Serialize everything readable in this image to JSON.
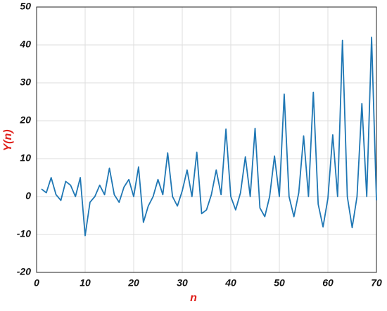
{
  "chart_data": {
    "type": "line",
    "xlabel": "n",
    "ylabel": "Y(n)",
    "x": [
      1,
      2,
      3,
      4,
      5,
      6,
      7,
      8,
      9,
      10,
      11,
      12,
      13,
      14,
      15,
      16,
      17,
      18,
      19,
      20,
      21,
      22,
      23,
      24,
      25,
      26,
      27,
      28,
      29,
      30,
      31,
      32,
      33,
      34,
      35,
      36,
      37,
      38,
      39,
      40,
      41,
      42,
      43,
      44,
      45,
      46,
      47,
      48,
      49,
      50,
      51,
      52,
      53,
      54,
      55,
      56,
      57,
      58,
      59,
      60,
      61,
      62,
      63,
      64,
      65,
      66,
      67,
      68,
      69,
      70
    ],
    "series": [
      {
        "color": "#1f77b4",
        "values": [
          2,
          1,
          5,
          0.5,
          -1,
          4,
          3,
          0,
          5,
          -10.3,
          -1.5,
          0,
          3,
          0.5,
          7.5,
          0.5,
          -1.5,
          2.5,
          4.5,
          0,
          7.8,
          -6.8,
          -2.5,
          0,
          4.5,
          0.5,
          11.5,
          0,
          -2.5,
          1.5,
          7,
          0,
          11.7,
          -4.5,
          -3.5,
          0.5,
          7,
          0.5,
          17.8,
          0,
          -3.5,
          1,
          10.5,
          0,
          18,
          -3,
          -5.3,
          0,
          10.7,
          0,
          27,
          0,
          -5.3,
          1,
          16,
          0,
          27.5,
          -2,
          -8,
          -0.5,
          16.3,
          0,
          41.2,
          0,
          -8.2,
          0,
          24.5,
          0,
          42,
          -1
        ]
      }
    ],
    "xlim": [
      0,
      70
    ],
    "xticks": [
      0,
      10,
      20,
      30,
      40,
      50,
      60,
      70
    ],
    "ylim": [
      -20,
      50
    ],
    "yticks": [
      -20,
      -10,
      0,
      10,
      20,
      30,
      40,
      50
    ],
    "grid": true
  }
}
